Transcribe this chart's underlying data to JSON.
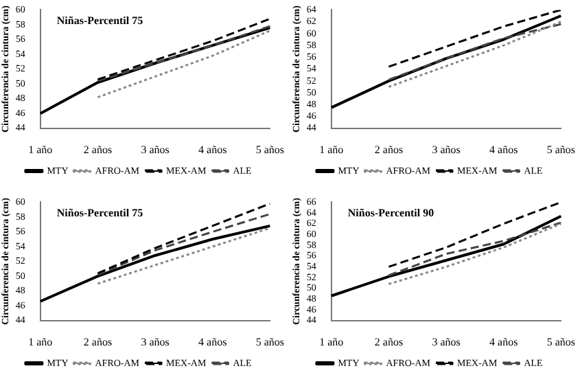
{
  "chart_data": [
    {
      "type": "line",
      "title": "Niñas-Percentil 75",
      "ylabel": "Circunferencia de cintura (cm)",
      "categories": [
        "1 año",
        "2 años",
        "3 años",
        "4 años",
        "5 años"
      ],
      "ylim": [
        44,
        60
      ],
      "yticks": [
        44,
        46,
        48,
        50,
        52,
        54,
        56,
        58,
        60
      ],
      "grid": false,
      "legend": "bottom",
      "marker": "none",
      "series": [
        {
          "name": "MTY",
          "color": "#000000",
          "line_style": "solid",
          "values": [
            46,
            50.2,
            52.8,
            55.2,
            57.6
          ]
        },
        {
          "name": "AFRO-AM",
          "color": "#888888",
          "line_style": "dotted",
          "values": [
            null,
            48.2,
            51,
            53.8,
            57.2
          ]
        },
        {
          "name": "MEX-AM",
          "color": "#000000",
          "line_style": "dashed",
          "values": [
            null,
            50.6,
            53.2,
            55.8,
            58.8
          ]
        },
        {
          "name": "ALE",
          "color": "#444444",
          "line_style": "dashed",
          "values": [
            null,
            50.4,
            52.8,
            55.2,
            57.8
          ]
        }
      ]
    },
    {
      "type": "line",
      "ylabel": "Circunferencia de cintura (cm)",
      "categories": [
        "1 año",
        "2 años",
        "3 años",
        "4 años",
        "5 años"
      ],
      "ylim": [
        44,
        64
      ],
      "yticks": [
        44,
        46,
        48,
        50,
        52,
        54,
        56,
        58,
        60,
        62,
        64
      ],
      "grid": false,
      "legend": "bottom",
      "marker": "none",
      "series": [
        {
          "name": "MTY",
          "color": "#000000",
          "line_style": "solid",
          "values": [
            47.5,
            52,
            55.8,
            59,
            63
          ]
        },
        {
          "name": "AFRO-AM",
          "color": "#888888",
          "line_style": "dotted",
          "values": [
            null,
            51,
            54.5,
            58,
            62
          ]
        },
        {
          "name": "MEX-AM",
          "color": "#000000",
          "line_style": "dashed",
          "values": [
            null,
            54.4,
            57.8,
            61.2,
            64
          ]
        },
        {
          "name": "ALE",
          "color": "#444444",
          "line_style": "dashed",
          "values": [
            null,
            52.2,
            55.8,
            59.2,
            61.6
          ]
        }
      ]
    },
    {
      "type": "line",
      "title": "Niños-Percentil 75",
      "ylabel": "Circunferencia de cintura (cm)",
      "categories": [
        "1 año",
        "2 años",
        "3 años",
        "4 años",
        "5 años"
      ],
      "ylim": [
        44,
        60
      ],
      "yticks": [
        44,
        46,
        48,
        50,
        52,
        54,
        56,
        58,
        60
      ],
      "grid": false,
      "legend": "bottom",
      "marker": "none",
      "series": [
        {
          "name": "MTY",
          "color": "#000000",
          "line_style": "solid",
          "values": [
            46.6,
            50,
            52.8,
            55,
            56.8
          ]
        },
        {
          "name": "AFRO-AM",
          "color": "#888888",
          "line_style": "dotted",
          "values": [
            null,
            49,
            51.5,
            54,
            56.5
          ]
        },
        {
          "name": "MEX-AM",
          "color": "#000000",
          "line_style": "dashed",
          "values": [
            null,
            50.4,
            53.8,
            56.8,
            59.8
          ]
        },
        {
          "name": "ALE",
          "color": "#444444",
          "line_style": "dashed",
          "values": [
            null,
            50.2,
            53.5,
            56,
            58.4
          ]
        }
      ]
    },
    {
      "type": "line",
      "title": "Niños-Percentil 90",
      "ylabel": "Circunferencia de cintura (cm)",
      "categories": [
        "1 año",
        "2 años",
        "3 años",
        "4 años",
        "5 años"
      ],
      "ylim": [
        44,
        66
      ],
      "yticks": [
        44,
        46,
        48,
        50,
        52,
        54,
        56,
        58,
        60,
        62,
        64,
        66
      ],
      "grid": false,
      "legend": "bottom",
      "marker": "none",
      "series": [
        {
          "name": "MTY",
          "color": "#000000",
          "line_style": "solid",
          "values": [
            48.6,
            52.2,
            55.2,
            58.2,
            63.4
          ]
        },
        {
          "name": "AFRO-AM",
          "color": "#888888",
          "line_style": "dotted",
          "values": [
            null,
            50.8,
            54,
            57.6,
            62
          ]
        },
        {
          "name": "MEX-AM",
          "color": "#000000",
          "line_style": "dashed",
          "values": [
            null,
            54,
            57.6,
            62,
            66
          ]
        },
        {
          "name": "ALE",
          "color": "#444444",
          "line_style": "dashed",
          "values": [
            null,
            52.4,
            56.4,
            58.8,
            62.2
          ]
        }
      ]
    }
  ]
}
